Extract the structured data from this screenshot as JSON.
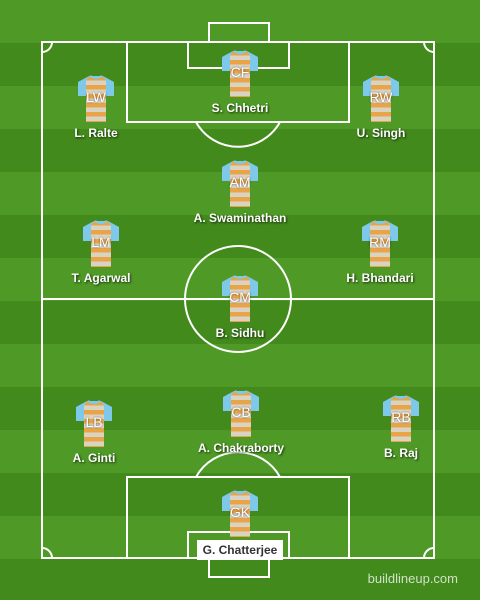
{
  "colors": {
    "grass_light": "#4f9a26",
    "grass_dark": "#428a1c",
    "lines": "#ffffff",
    "shirt_body": "#e9a448",
    "shirt_stripe": "#d9d3c4",
    "shirt_sleeves": "#7ec8ea"
  },
  "formation": {
    "players": [
      {
        "role": "CF",
        "name": "S. Chhetri"
      },
      {
        "role": "LW",
        "name": "L. Ralte"
      },
      {
        "role": "RW",
        "name": "U. Singh"
      },
      {
        "role": "AM",
        "name": "A. Swaminathan"
      },
      {
        "role": "LM",
        "name": "T. Agarwal"
      },
      {
        "role": "RM",
        "name": "H. Bhandari"
      },
      {
        "role": "CM",
        "name": "B. Sidhu"
      },
      {
        "role": "LB",
        "name": "A. Ginti"
      },
      {
        "role": "CB",
        "name": "A. Chakraborty"
      },
      {
        "role": "RB",
        "name": "B. Raj"
      },
      {
        "role": "GK",
        "name": "G. Chatterjee"
      }
    ]
  },
  "watermark": "buildlineup.com"
}
